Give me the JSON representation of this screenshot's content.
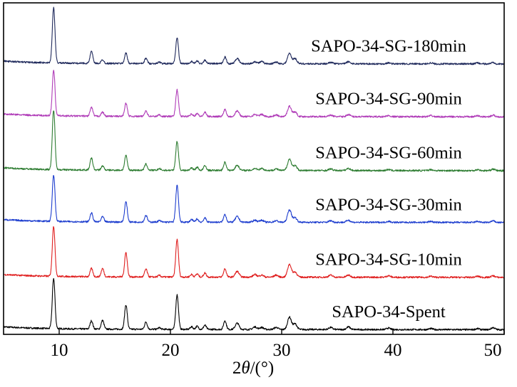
{
  "chart_data": {
    "type": "line",
    "title": "",
    "xlabel_prefix": "2",
    "xlabel_symbol": "θ",
    "xlabel_suffix": "/(°)",
    "ylabel": "",
    "xlim": [
      5,
      50
    ],
    "x_ticks": [
      10,
      20,
      30,
      40,
      50
    ],
    "y_axis": "stacked intensity (arbitrary units), no tick labels",
    "grid": false,
    "peaks_2theta": [
      9.5,
      12.9,
      13.9,
      16.0,
      17.8,
      19.0,
      20.6,
      21.9,
      22.4,
      23.1,
      24.9,
      26.0,
      27.6,
      28.2,
      29.5,
      30.7,
      31.2,
      34.4,
      36.0,
      39.6,
      43.4,
      47.6,
      49.0
    ],
    "series": [
      {
        "name": "SAPO-34-Spent",
        "color": "#000000",
        "baseline": 0,
        "peaks": [
          [
            9.5,
            9.7
          ],
          [
            12.9,
            1.6
          ],
          [
            13.9,
            1.7
          ],
          [
            16.0,
            4.7
          ],
          [
            17.8,
            1.4
          ],
          [
            19.0,
            0.3
          ],
          [
            20.6,
            6.7
          ],
          [
            21.9,
            0.5
          ],
          [
            22.4,
            0.6
          ],
          [
            23.1,
            0.8
          ],
          [
            24.9,
            1.7
          ],
          [
            26.0,
            1.2
          ],
          [
            27.6,
            0.5
          ],
          [
            28.2,
            0.4
          ],
          [
            29.5,
            0.4
          ],
          [
            30.7,
            2.4
          ],
          [
            31.2,
            1.1
          ],
          [
            34.4,
            0.4
          ],
          [
            36.0,
            0.5
          ],
          [
            39.6,
            0.3
          ],
          [
            43.4,
            0.2
          ],
          [
            47.6,
            0.2
          ],
          [
            49.0,
            0.4
          ]
        ]
      },
      {
        "name": "SAPO-34-SG-10min",
        "color": "#e02020",
        "baseline": 10.1,
        "peaks": [
          [
            9.5,
            9.7
          ],
          [
            12.9,
            1.6
          ],
          [
            13.9,
            1.6
          ],
          [
            16.0,
            4.7
          ],
          [
            17.8,
            1.5
          ],
          [
            19.0,
            0.3
          ],
          [
            20.6,
            7.3
          ],
          [
            21.9,
            0.5
          ],
          [
            22.4,
            0.6
          ],
          [
            23.1,
            0.8
          ],
          [
            24.9,
            1.6
          ],
          [
            26.0,
            1.1
          ],
          [
            27.6,
            0.5
          ],
          [
            28.2,
            0.4
          ],
          [
            29.5,
            0.4
          ],
          [
            30.7,
            2.5
          ],
          [
            31.2,
            1.0
          ],
          [
            34.4,
            0.4
          ],
          [
            36.0,
            0.4
          ],
          [
            39.6,
            0.3
          ],
          [
            43.4,
            0.2
          ],
          [
            47.6,
            0.2
          ],
          [
            49.0,
            0.3
          ]
        ]
      },
      {
        "name": "SAPO-34-SG-30min",
        "color": "#1f3fcf",
        "baseline": 20.7,
        "peaks": [
          [
            9.5,
            9.0
          ],
          [
            12.9,
            1.7
          ],
          [
            13.9,
            1.0
          ],
          [
            16.0,
            3.9
          ],
          [
            17.8,
            1.3
          ],
          [
            19.0,
            0.3
          ],
          [
            20.6,
            7.2
          ],
          [
            21.9,
            0.5
          ],
          [
            22.4,
            0.6
          ],
          [
            23.1,
            0.8
          ],
          [
            24.9,
            1.5
          ],
          [
            26.0,
            1.1
          ],
          [
            27.6,
            0.4
          ],
          [
            28.2,
            0.4
          ],
          [
            29.5,
            0.3
          ],
          [
            30.7,
            2.4
          ],
          [
            31.2,
            0.9
          ],
          [
            34.4,
            0.3
          ],
          [
            36.0,
            0.4
          ],
          [
            39.6,
            0.2
          ],
          [
            43.4,
            0.2
          ],
          [
            47.6,
            0.2
          ],
          [
            49.0,
            0.3
          ]
        ]
      },
      {
        "name": "SAPO-34-SG-60min",
        "color": "#2e7d32",
        "baseline": 30.7,
        "peaks": [
          [
            9.5,
            11.5
          ],
          [
            12.9,
            2.3
          ],
          [
            13.9,
            0.8
          ],
          [
            16.0,
            2.8
          ],
          [
            17.8,
            1.2
          ],
          [
            19.0,
            0.3
          ],
          [
            20.6,
            5.6
          ],
          [
            21.9,
            0.5
          ],
          [
            22.4,
            0.6
          ],
          [
            23.1,
            0.9
          ],
          [
            24.9,
            1.6
          ],
          [
            26.0,
            1.0
          ],
          [
            27.6,
            0.4
          ],
          [
            28.2,
            0.4
          ],
          [
            29.5,
            0.3
          ],
          [
            30.7,
            2.2
          ],
          [
            31.2,
            0.9
          ],
          [
            34.4,
            0.3
          ],
          [
            36.0,
            0.4
          ],
          [
            39.6,
            0.2
          ],
          [
            43.4,
            0.2
          ],
          [
            47.6,
            0.2
          ],
          [
            49.0,
            0.3
          ]
        ]
      },
      {
        "name": "SAPO-34-SG-90min",
        "color": "#b03cb8",
        "baseline": 41.1,
        "peaks": [
          [
            9.5,
            8.8
          ],
          [
            12.9,
            1.7
          ],
          [
            13.9,
            0.8
          ],
          [
            16.0,
            2.5
          ],
          [
            17.8,
            1.1
          ],
          [
            19.0,
            0.3
          ],
          [
            20.6,
            5.2
          ],
          [
            21.9,
            0.5
          ],
          [
            22.4,
            0.6
          ],
          [
            23.1,
            0.8
          ],
          [
            24.9,
            1.4
          ],
          [
            26.0,
            1.1
          ],
          [
            27.6,
            0.4
          ],
          [
            28.2,
            0.4
          ],
          [
            29.5,
            0.3
          ],
          [
            30.7,
            2.0
          ],
          [
            31.2,
            0.9
          ],
          [
            34.4,
            0.3
          ],
          [
            36.0,
            0.4
          ],
          [
            39.6,
            0.2
          ],
          [
            43.4,
            0.2
          ],
          [
            47.6,
            0.2
          ],
          [
            49.0,
            0.3
          ]
        ]
      },
      {
        "name": "SAPO-34-SG-180min",
        "color": "#202a5c",
        "baseline": 51.3,
        "peaks": [
          [
            9.5,
            10.6
          ],
          [
            12.9,
            2.3
          ],
          [
            13.9,
            0.7
          ],
          [
            16.0,
            2.0
          ],
          [
            17.8,
            1.0
          ],
          [
            19.0,
            0.3
          ],
          [
            20.6,
            5.0
          ],
          [
            21.9,
            0.4
          ],
          [
            22.4,
            0.5
          ],
          [
            23.1,
            0.7
          ],
          [
            24.9,
            1.3
          ],
          [
            26.0,
            1.0
          ],
          [
            27.6,
            0.4
          ],
          [
            28.2,
            0.4
          ],
          [
            29.5,
            0.3
          ],
          [
            30.7,
            2.0
          ],
          [
            31.2,
            1.0
          ],
          [
            34.4,
            0.3
          ],
          [
            36.0,
            0.4
          ],
          [
            39.6,
            0.2
          ],
          [
            43.4,
            0.2
          ],
          [
            47.6,
            0.2
          ],
          [
            49.0,
            0.3
          ]
        ]
      }
    ],
    "ylim": [
      -1,
      63
    ],
    "legend": "labels placed at right, beside each trace"
  }
}
